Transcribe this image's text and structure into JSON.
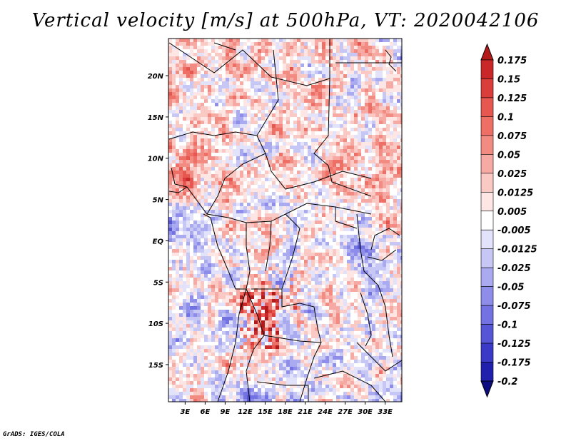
{
  "chart_data": {
    "type": "heatmap",
    "title": "Vertical velocity [m/s] at 500hPa, VT: 2020042106",
    "variable": "Vertical velocity",
    "units": "m/s",
    "level": "500hPa",
    "valid_time": "2020042106",
    "x_ticks": [
      "3E",
      "6E",
      "9E",
      "12E",
      "15E",
      "18E",
      "21E",
      "24E",
      "27E",
      "30E",
      "33E"
    ],
    "x_tick_values": [
      3,
      6,
      9,
      12,
      15,
      18,
      21,
      24,
      27,
      30,
      33
    ],
    "y_ticks": [
      "20N",
      "15N",
      "10N",
      "5N",
      "EQ",
      "5S",
      "10S",
      "15S"
    ],
    "y_tick_values": [
      20,
      15,
      10,
      5,
      0,
      -5,
      -10,
      -15
    ],
    "xlim": [
      0.5,
      35.5
    ],
    "ylim": [
      -19.5,
      24.5
    ],
    "colorbar_levels": [
      "0.175",
      "0.15",
      "0.125",
      "0.1",
      "0.075",
      "0.05",
      "0.025",
      "0.0125",
      "0.005",
      "-0.005",
      "-0.0125",
      "-0.025",
      "-0.05",
      "-0.075",
      "-0.1",
      "-0.125",
      "-0.175",
      "-0.2"
    ],
    "colorbar_colors": [
      "#b41a1a",
      "#c8282a",
      "#d93e3a",
      "#e5574f",
      "#ed6f66",
      "#f28c82",
      "#f6aaa3",
      "#fac9c4",
      "#fde6e3",
      "#ffffff",
      "#e2e2fb",
      "#c7c7f6",
      "#aaaaf1",
      "#8e8eea",
      "#7272e2",
      "#5555d6",
      "#3a3ac6",
      "#2020ac",
      "#0c0c80"
    ]
  },
  "footer": "GrADS: IGES/COLA"
}
